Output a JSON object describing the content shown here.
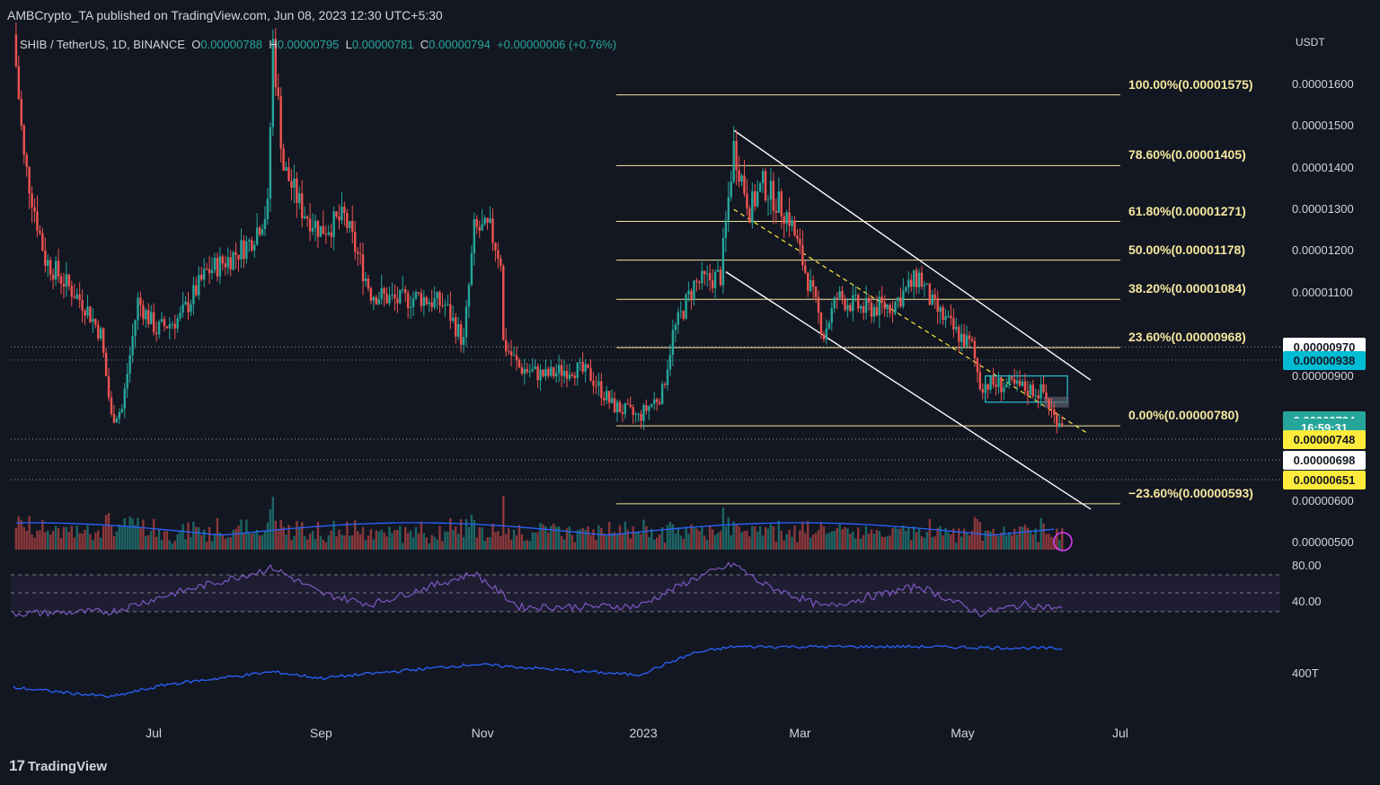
{
  "header": {
    "published": "AMBCrypto_TA published on TradingView.com, Jun 08, 2023 12:30 UTC+5:30",
    "symbol": "SHIB / TetherUS, 1D, BINANCE",
    "o_label": "O",
    "o_value": "0.00000788",
    "h_label": "H",
    "h_value": "0.00000795",
    "l_label": "L",
    "l_value": "0.00000781",
    "c_label": "C",
    "c_value": "0.00000794",
    "change": "+0.00000006 (+0.76%)"
  },
  "branding": {
    "logo": "TradingView",
    "logo_icon": "tradingview-logo-icon"
  },
  "colors": {
    "background": "#131722",
    "up": "#26a69a",
    "down": "#ef5350",
    "fib": "#f5e79e",
    "volume_ma": "#2962ff",
    "rsi": "#7e57c2",
    "channel": "#ffffff",
    "badge_cyan": "#00bcd4",
    "badge_yellow": "#ffeb3b",
    "badge_green": "#26a69a"
  },
  "chart_data": {
    "type": "candlestick",
    "title": "SHIB / TetherUS, 1D, BINANCE",
    "ylabel": "USDT",
    "ylim": [
      4.8e-06,
      1.72e-05
    ],
    "y_ticks": [
      "0.00001600",
      "0.00001500",
      "0.00001400",
      "0.00001300",
      "0.00001200",
      "0.00001100",
      "0.00000900",
      "0.00000600",
      "0.00000500"
    ],
    "x_ticks": [
      "Jul",
      "Sep",
      "Nov",
      "2023",
      "Mar",
      "May",
      "Jul"
    ],
    "fib_levels": [
      {
        "label": "100.00%(0.00001575)",
        "value": 1.575e-05
      },
      {
        "label": "78.60%(0.00001405)",
        "value": 1.405e-05
      },
      {
        "label": "61.80%(0.00001271)",
        "value": 1.271e-05
      },
      {
        "label": "50.00%(0.00001178)",
        "value": 1.178e-05
      },
      {
        "label": "38.20%(0.00001084)",
        "value": 1.084e-05
      },
      {
        "label": "23.60%(0.00000968)",
        "value": 9.68e-06
      },
      {
        "label": "0.00%(0.00000780)",
        "value": 7.8e-06
      },
      {
        "label": "−23.60%(0.00000593)",
        "value": 5.93e-06
      }
    ],
    "price_badges": [
      {
        "text": "0.00000970",
        "value": 9.7e-06,
        "style": "white"
      },
      {
        "text": "0.00000938",
        "value": 9.38e-06,
        "style": "cyan"
      },
      {
        "text": "0.00000794",
        "value": 7.94e-06,
        "style": "green"
      },
      {
        "text": "16:59:31",
        "value": 7.77e-06,
        "style": "green"
      },
      {
        "text": "0.00000748",
        "value": 7.48e-06,
        "style": "yellow"
      },
      {
        "text": "0.00000698",
        "value": 6.98e-06,
        "style": "white"
      },
      {
        "text": "0.00000651",
        "value": 6.51e-06,
        "style": "yellow"
      }
    ],
    "price_points": [
      [
        "2022-05-08",
        1.72e-05
      ],
      [
        "2022-05-12",
        1.42e-05
      ],
      [
        "2022-05-20",
        1.18e-05
      ],
      [
        "2022-05-28",
        1.12e-05
      ],
      [
        "2022-06-04",
        1.07e-05
      ],
      [
        "2022-06-10",
        1e-05
      ],
      [
        "2022-06-14",
        8e-06
      ],
      [
        "2022-06-18",
        8.2e-06
      ],
      [
        "2022-06-24",
        1.08e-05
      ],
      [
        "2022-07-01",
        1.01e-05
      ],
      [
        "2022-07-10",
        1.04e-05
      ],
      [
        "2022-07-20",
        1.15e-05
      ],
      [
        "2022-07-28",
        1.18e-05
      ],
      [
        "2022-08-05",
        1.22e-05
      ],
      [
        "2022-08-12",
        1.3e-05
      ],
      [
        "2022-08-14",
        1.7e-05
      ],
      [
        "2022-08-18",
        1.4e-05
      ],
      [
        "2022-08-25",
        1.3e-05
      ],
      [
        "2022-09-01",
        1.25e-05
      ],
      [
        "2022-09-10",
        1.28e-05
      ],
      [
        "2022-09-20",
        1.1e-05
      ],
      [
        "2022-09-30",
        1.08e-05
      ],
      [
        "2022-10-08",
        1.09e-05
      ],
      [
        "2022-10-18",
        1.07e-05
      ],
      [
        "2022-10-25",
        9.8e-06
      ],
      [
        "2022-10-29",
        1.25e-05
      ],
      [
        "2022-11-04",
        1.25e-05
      ],
      [
        "2022-11-08",
        1.18e-05
      ],
      [
        "2022-11-09",
        9.8e-06
      ],
      [
        "2022-11-15",
        9.2e-06
      ],
      [
        "2022-11-25",
        9e-06
      ],
      [
        "2022-12-05",
        9.2e-06
      ],
      [
        "2022-12-12",
        9e-06
      ],
      [
        "2022-12-20",
        8.3e-06
      ],
      [
        "2022-12-30",
        8e-06
      ],
      [
        "2023-01-08",
        8.6e-06
      ],
      [
        "2023-01-12",
        1e-05
      ],
      [
        "2023-01-20",
        1.12e-05
      ],
      [
        "2023-01-30",
        1.14e-05
      ],
      [
        "2023-02-04",
        1.45e-05
      ],
      [
        "2023-02-10",
        1.3e-05
      ],
      [
        "2023-02-15",
        1.36e-05
      ],
      [
        "2023-02-25",
        1.28e-05
      ],
      [
        "2023-03-05",
        1.11e-05
      ],
      [
        "2023-03-10",
        1e-05
      ],
      [
        "2023-03-15",
        1.09e-05
      ],
      [
        "2023-03-25",
        1.06e-05
      ],
      [
        "2023-04-05",
        1.07e-05
      ],
      [
        "2023-04-15",
        1.14e-05
      ],
      [
        "2023-04-20",
        1.07e-05
      ],
      [
        "2023-04-28",
        1.01e-05
      ],
      [
        "2023-05-05",
        9.7e-06
      ],
      [
        "2023-05-08",
        8.8e-06
      ],
      [
        "2023-05-15",
        8.8e-06
      ],
      [
        "2023-05-25",
        8.7e-06
      ],
      [
        "2023-06-01",
        8.6e-06
      ],
      [
        "2023-06-05",
        8e-06
      ],
      [
        "2023-06-08",
        7.94e-06
      ]
    ],
    "rsi_ticks": [
      "80.00",
      "40.00"
    ],
    "rsi_points": [
      [
        "2022-05-08",
        28
      ],
      [
        "2022-06-14",
        30
      ],
      [
        "2022-07-05",
        48
      ],
      [
        "2022-08-14",
        78
      ],
      [
        "2022-09-01",
        50
      ],
      [
        "2022-09-20",
        38
      ],
      [
        "2022-10-29",
        72
      ],
      [
        "2022-11-15",
        35
      ],
      [
        "2022-12-30",
        36
      ],
      [
        "2023-01-20",
        66
      ],
      [
        "2023-02-04",
        82
      ],
      [
        "2023-02-15",
        60
      ],
      [
        "2023-03-10",
        35
      ],
      [
        "2023-04-15",
        58
      ],
      [
        "2023-05-08",
        28
      ],
      [
        "2023-05-25",
        38
      ],
      [
        "2023-06-08",
        33
      ]
    ],
    "obv_tick": "400T",
    "obv_points": [
      [
        "2022-05-08",
        0.35
      ],
      [
        "2022-06-14",
        0.2
      ],
      [
        "2022-07-05",
        0.4
      ],
      [
        "2022-08-14",
        0.6
      ],
      [
        "2022-09-01",
        0.5
      ],
      [
        "2022-10-29",
        0.72
      ],
      [
        "2022-12-30",
        0.55
      ],
      [
        "2023-01-20",
        0.9
      ],
      [
        "2023-02-04",
        1.0
      ],
      [
        "2023-04-15",
        1.0
      ],
      [
        "2023-06-08",
        0.97
      ]
    ]
  }
}
